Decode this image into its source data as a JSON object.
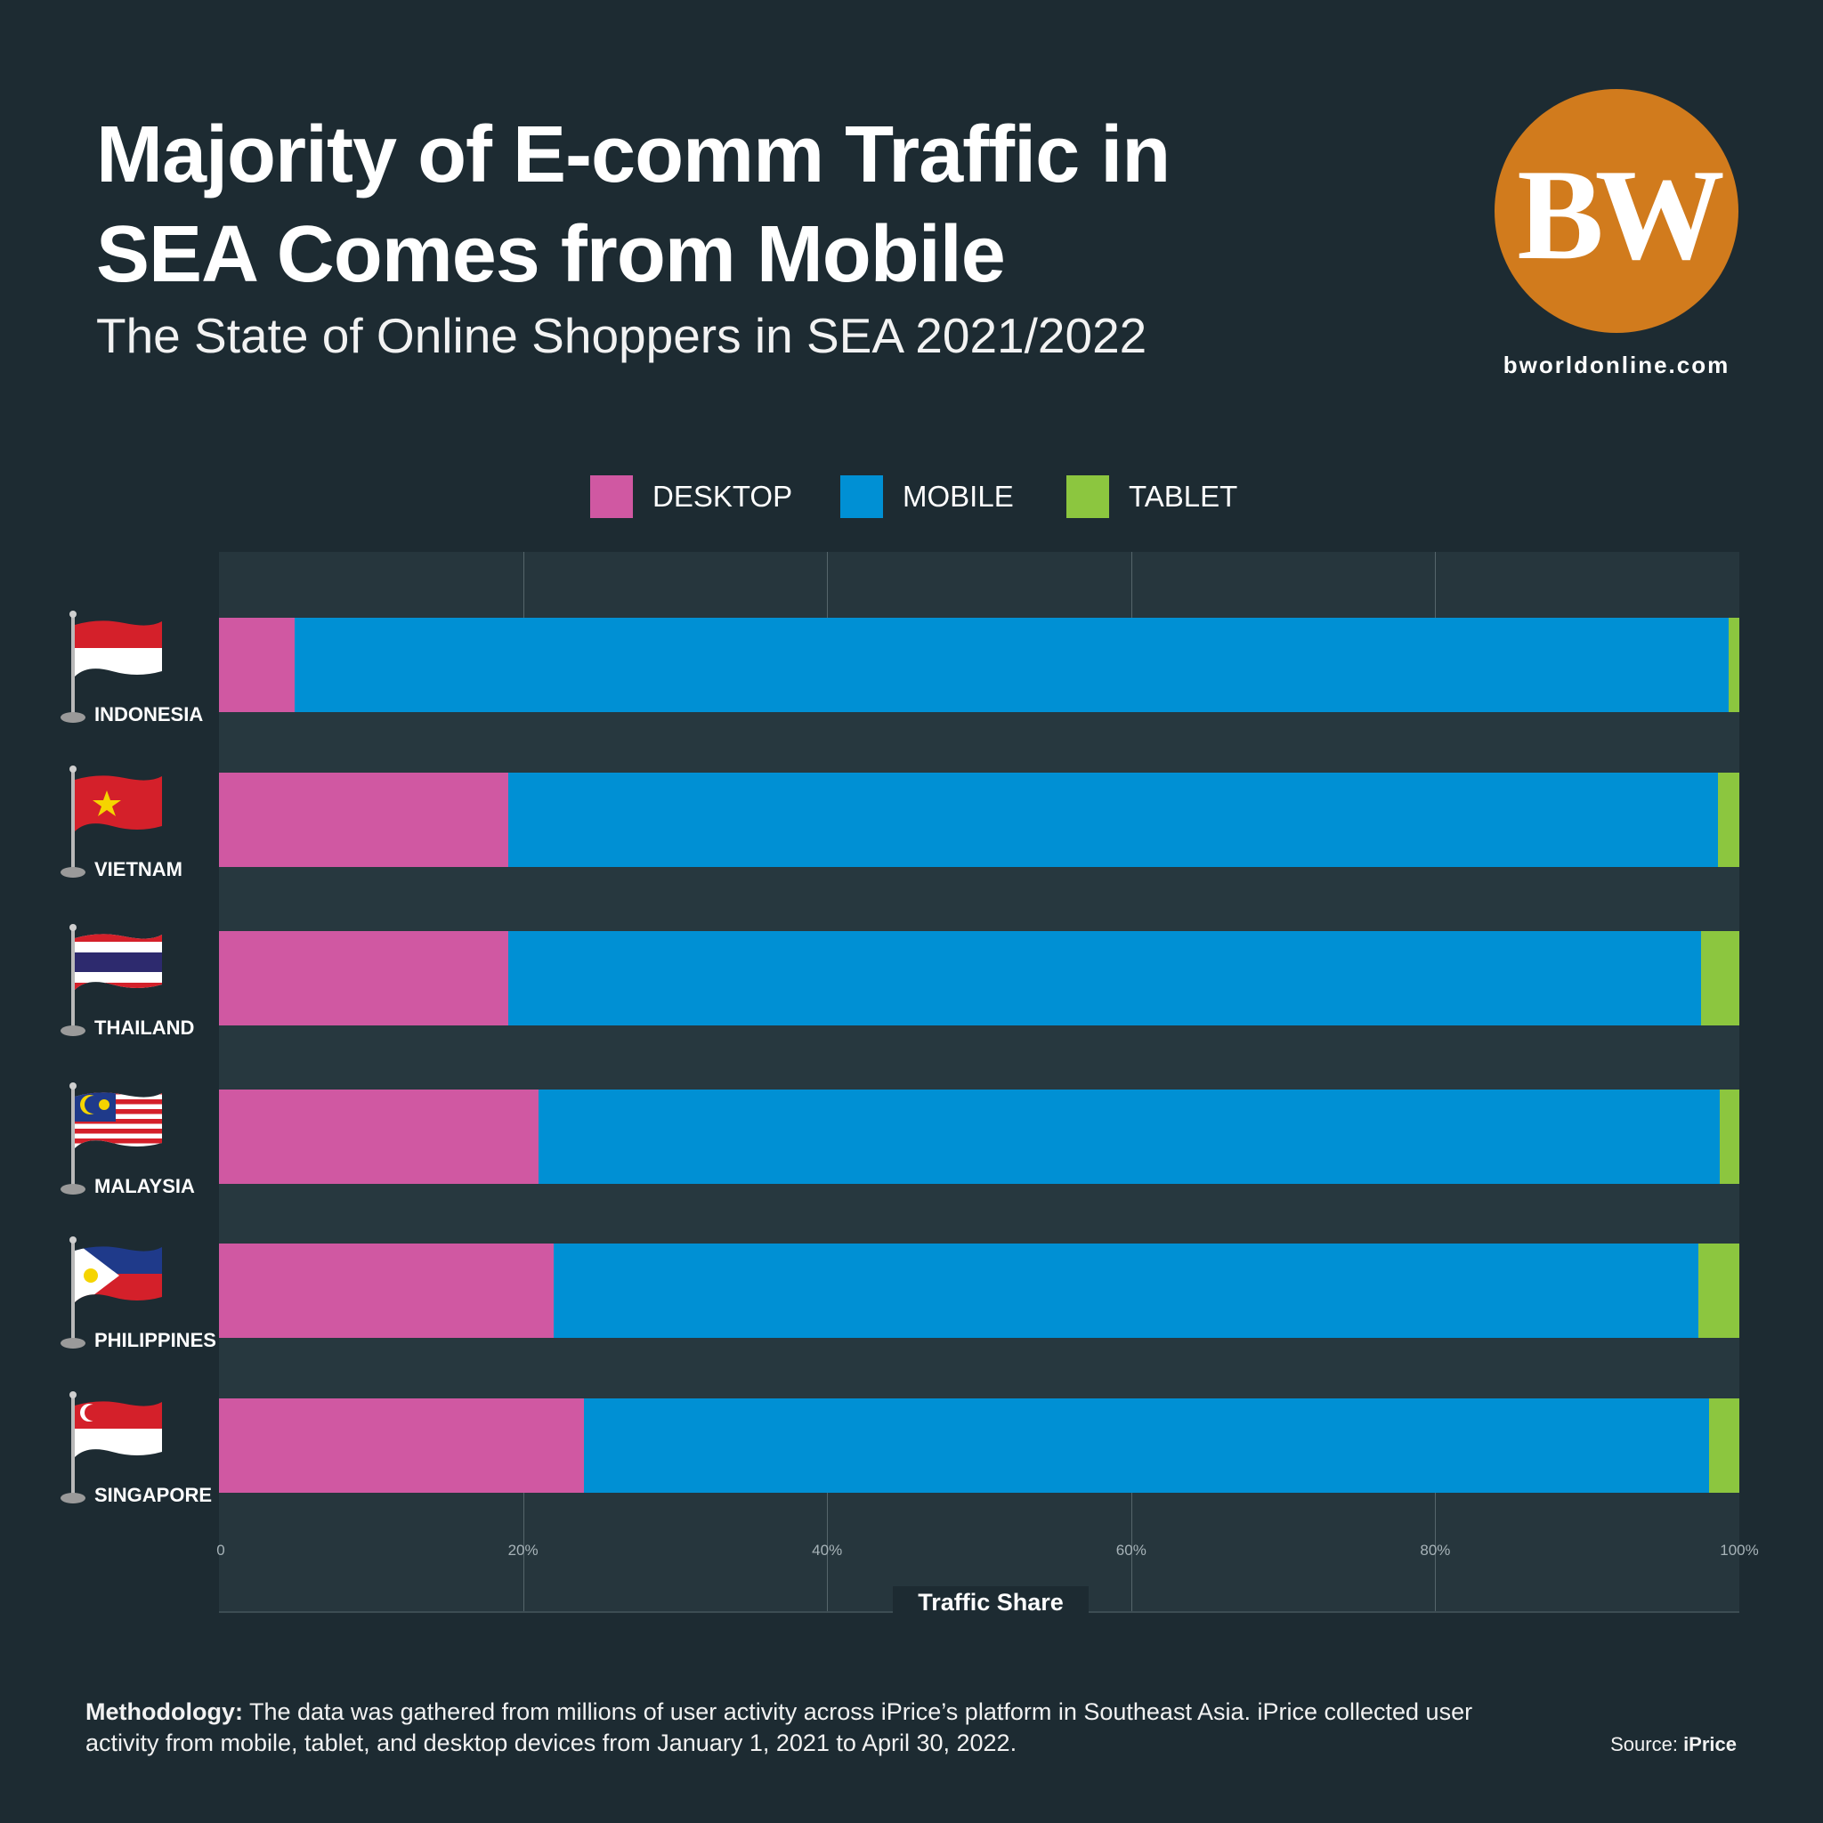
{
  "header": {
    "title": "Majority of E-comm Traffic in SEA Comes from Mobile",
    "subtitle": "The State of Online Shoppers in SEA 2021/2022",
    "logo_text": "BW",
    "site": "bworldonline.com"
  },
  "colors": {
    "desktop": "#d058a2",
    "mobile": "#0090d4",
    "tablet": "#8cc63f",
    "background": "#1d2b32",
    "logo": "#d17b1d"
  },
  "chart_data": {
    "type": "bar",
    "orientation": "horizontal",
    "stacked": true,
    "title": "Majority of E-comm Traffic in SEA Comes from Mobile",
    "xlabel": "Traffic Share",
    "ylabel": "",
    "xlim": [
      0,
      100
    ],
    "x_ticks": [
      "0",
      "20%",
      "40%",
      "60%",
      "80%",
      "100%"
    ],
    "grid": true,
    "legend_position": "top-center",
    "categories": [
      "INDONESIA",
      "VIETNAM",
      "THAILAND",
      "MALAYSIA",
      "PHILIPPINES",
      "SINGAPORE"
    ],
    "series": [
      {
        "name": "DESKTOP",
        "color": "#d058a2",
        "values": [
          5,
          19,
          19,
          21,
          22,
          24
        ]
      },
      {
        "name": "MOBILE",
        "color": "#0090d4",
        "values": [
          94.3,
          79.6,
          78.5,
          77.7,
          75.3,
          74
        ]
      },
      {
        "name": "TABLET",
        "color": "#8cc63f",
        "values": [
          0.7,
          1.4,
          2.5,
          1.3,
          1.7,
          2
        ]
      }
    ]
  },
  "footer": {
    "methodology_label": "Methodology:",
    "methodology_text": " The data was gathered from millions of user activity across iPrice’s platform in Southeast Asia. iPrice collected user activity from mobile, tablet, and desktop devices from January 1, 2021 to April 30, 2022.",
    "source_label": "Source: ",
    "source_value": "iPrice"
  }
}
